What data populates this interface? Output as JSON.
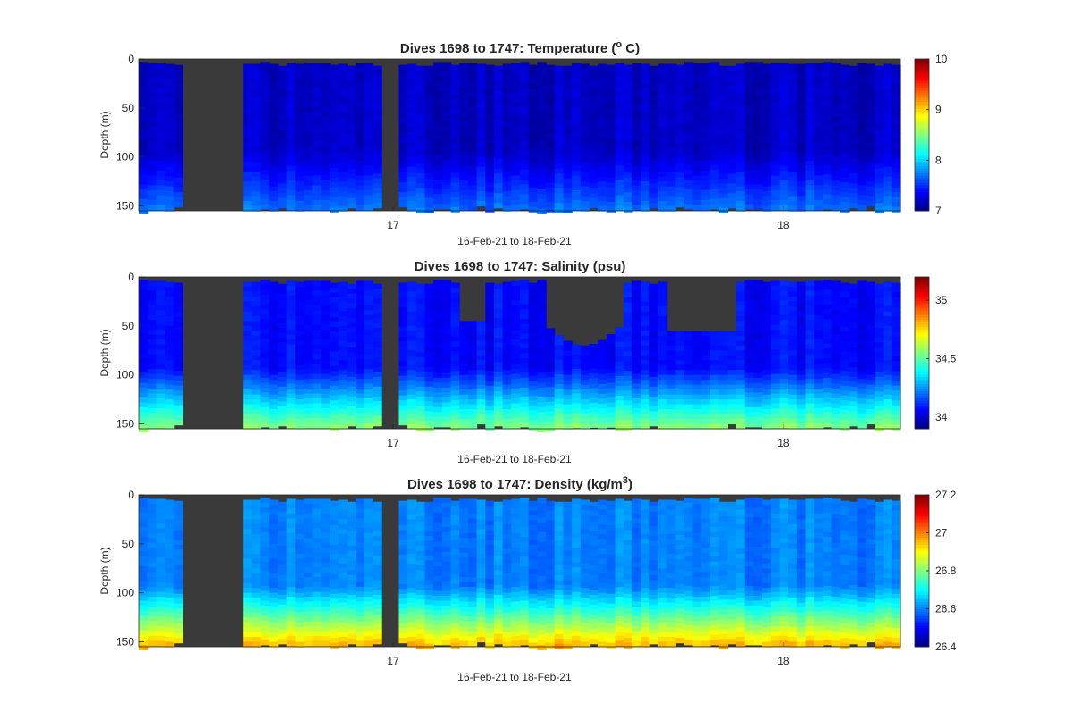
{
  "figure": {
    "background_color": "#ffffff",
    "gap_color": "#3a3a3a",
    "colormap": "jet"
  },
  "chart_data": [
    {
      "type": "heatmap",
      "title": "Dives 1698 to 1747: Temperature (",
      "title_sup": "o",
      "title_suffix": " C)",
      "ylabel": "Depth (m)",
      "xlabel": "16-Feb-21 to 18-Feb-21",
      "x_range_days": [
        16.35,
        18.3
      ],
      "x_ticks": [
        {
          "value": 17,
          "label": "17"
        },
        {
          "value": 18,
          "label": "18"
        }
      ],
      "y_range": [
        0,
        155
      ],
      "y_ticks": [
        {
          "value": 0,
          "label": "0"
        },
        {
          "value": 50,
          "label": "50"
        },
        {
          "value": 100,
          "label": "100"
        },
        {
          "value": 150,
          "label": "150"
        }
      ],
      "colorbar": {
        "range": [
          7,
          10
        ],
        "ticks": [
          {
            "value": 7,
            "label": "7"
          },
          {
            "value": 8,
            "label": "8"
          },
          {
            "value": 9,
            "label": "9"
          },
          {
            "value": 10,
            "label": "10"
          }
        ]
      },
      "surface_value": 7.2,
      "bottom_value": 7.7
    },
    {
      "type": "heatmap",
      "title": "Dives 1698 to 1747: Salinity (psu)",
      "title_sup": "",
      "title_suffix": "",
      "ylabel": "Depth (m)",
      "xlabel": "16-Feb-21 to 18-Feb-21",
      "x_range_days": [
        16.35,
        18.3
      ],
      "x_ticks": [
        {
          "value": 17,
          "label": "17"
        },
        {
          "value": 18,
          "label": "18"
        }
      ],
      "y_range": [
        0,
        155
      ],
      "y_ticks": [
        {
          "value": 0,
          "label": "0"
        },
        {
          "value": 50,
          "label": "50"
        },
        {
          "value": 100,
          "label": "100"
        },
        {
          "value": 150,
          "label": "150"
        }
      ],
      "colorbar": {
        "range": [
          33.9,
          35.2
        ],
        "ticks": [
          {
            "value": 34,
            "label": "34"
          },
          {
            "value": 34.5,
            "label": "34.5"
          },
          {
            "value": 35,
            "label": "35"
          }
        ]
      },
      "surface_value": 34.07,
      "bottom_value": 34.55
    },
    {
      "type": "heatmap",
      "title": "Dives 1698 to 1747: Density (kg/m",
      "title_sup": "3",
      "title_suffix": ")",
      "ylabel": "Depth (m)",
      "xlabel": "16-Feb-21 to 18-Feb-21",
      "x_range_days": [
        16.35,
        18.3
      ],
      "x_ticks": [
        {
          "value": 17,
          "label": "17"
        },
        {
          "value": 18,
          "label": "18"
        }
      ],
      "y_range": [
        0,
        155
      ],
      "y_ticks": [
        {
          "value": 0,
          "label": "0"
        },
        {
          "value": 50,
          "label": "50"
        },
        {
          "value": 100,
          "label": "100"
        },
        {
          "value": 150,
          "label": "150"
        }
      ],
      "colorbar": {
        "range": [
          26.4,
          27.2
        ],
        "ticks": [
          {
            "value": 26.4,
            "label": "26.4"
          },
          {
            "value": 26.6,
            "label": "26.6"
          },
          {
            "value": 26.8,
            "label": "26.8"
          },
          {
            "value": 27,
            "label": "27"
          },
          {
            "value": 27.2,
            "label": "27.2"
          }
        ]
      },
      "surface_value": 26.6,
      "bottom_value": 26.95
    }
  ]
}
